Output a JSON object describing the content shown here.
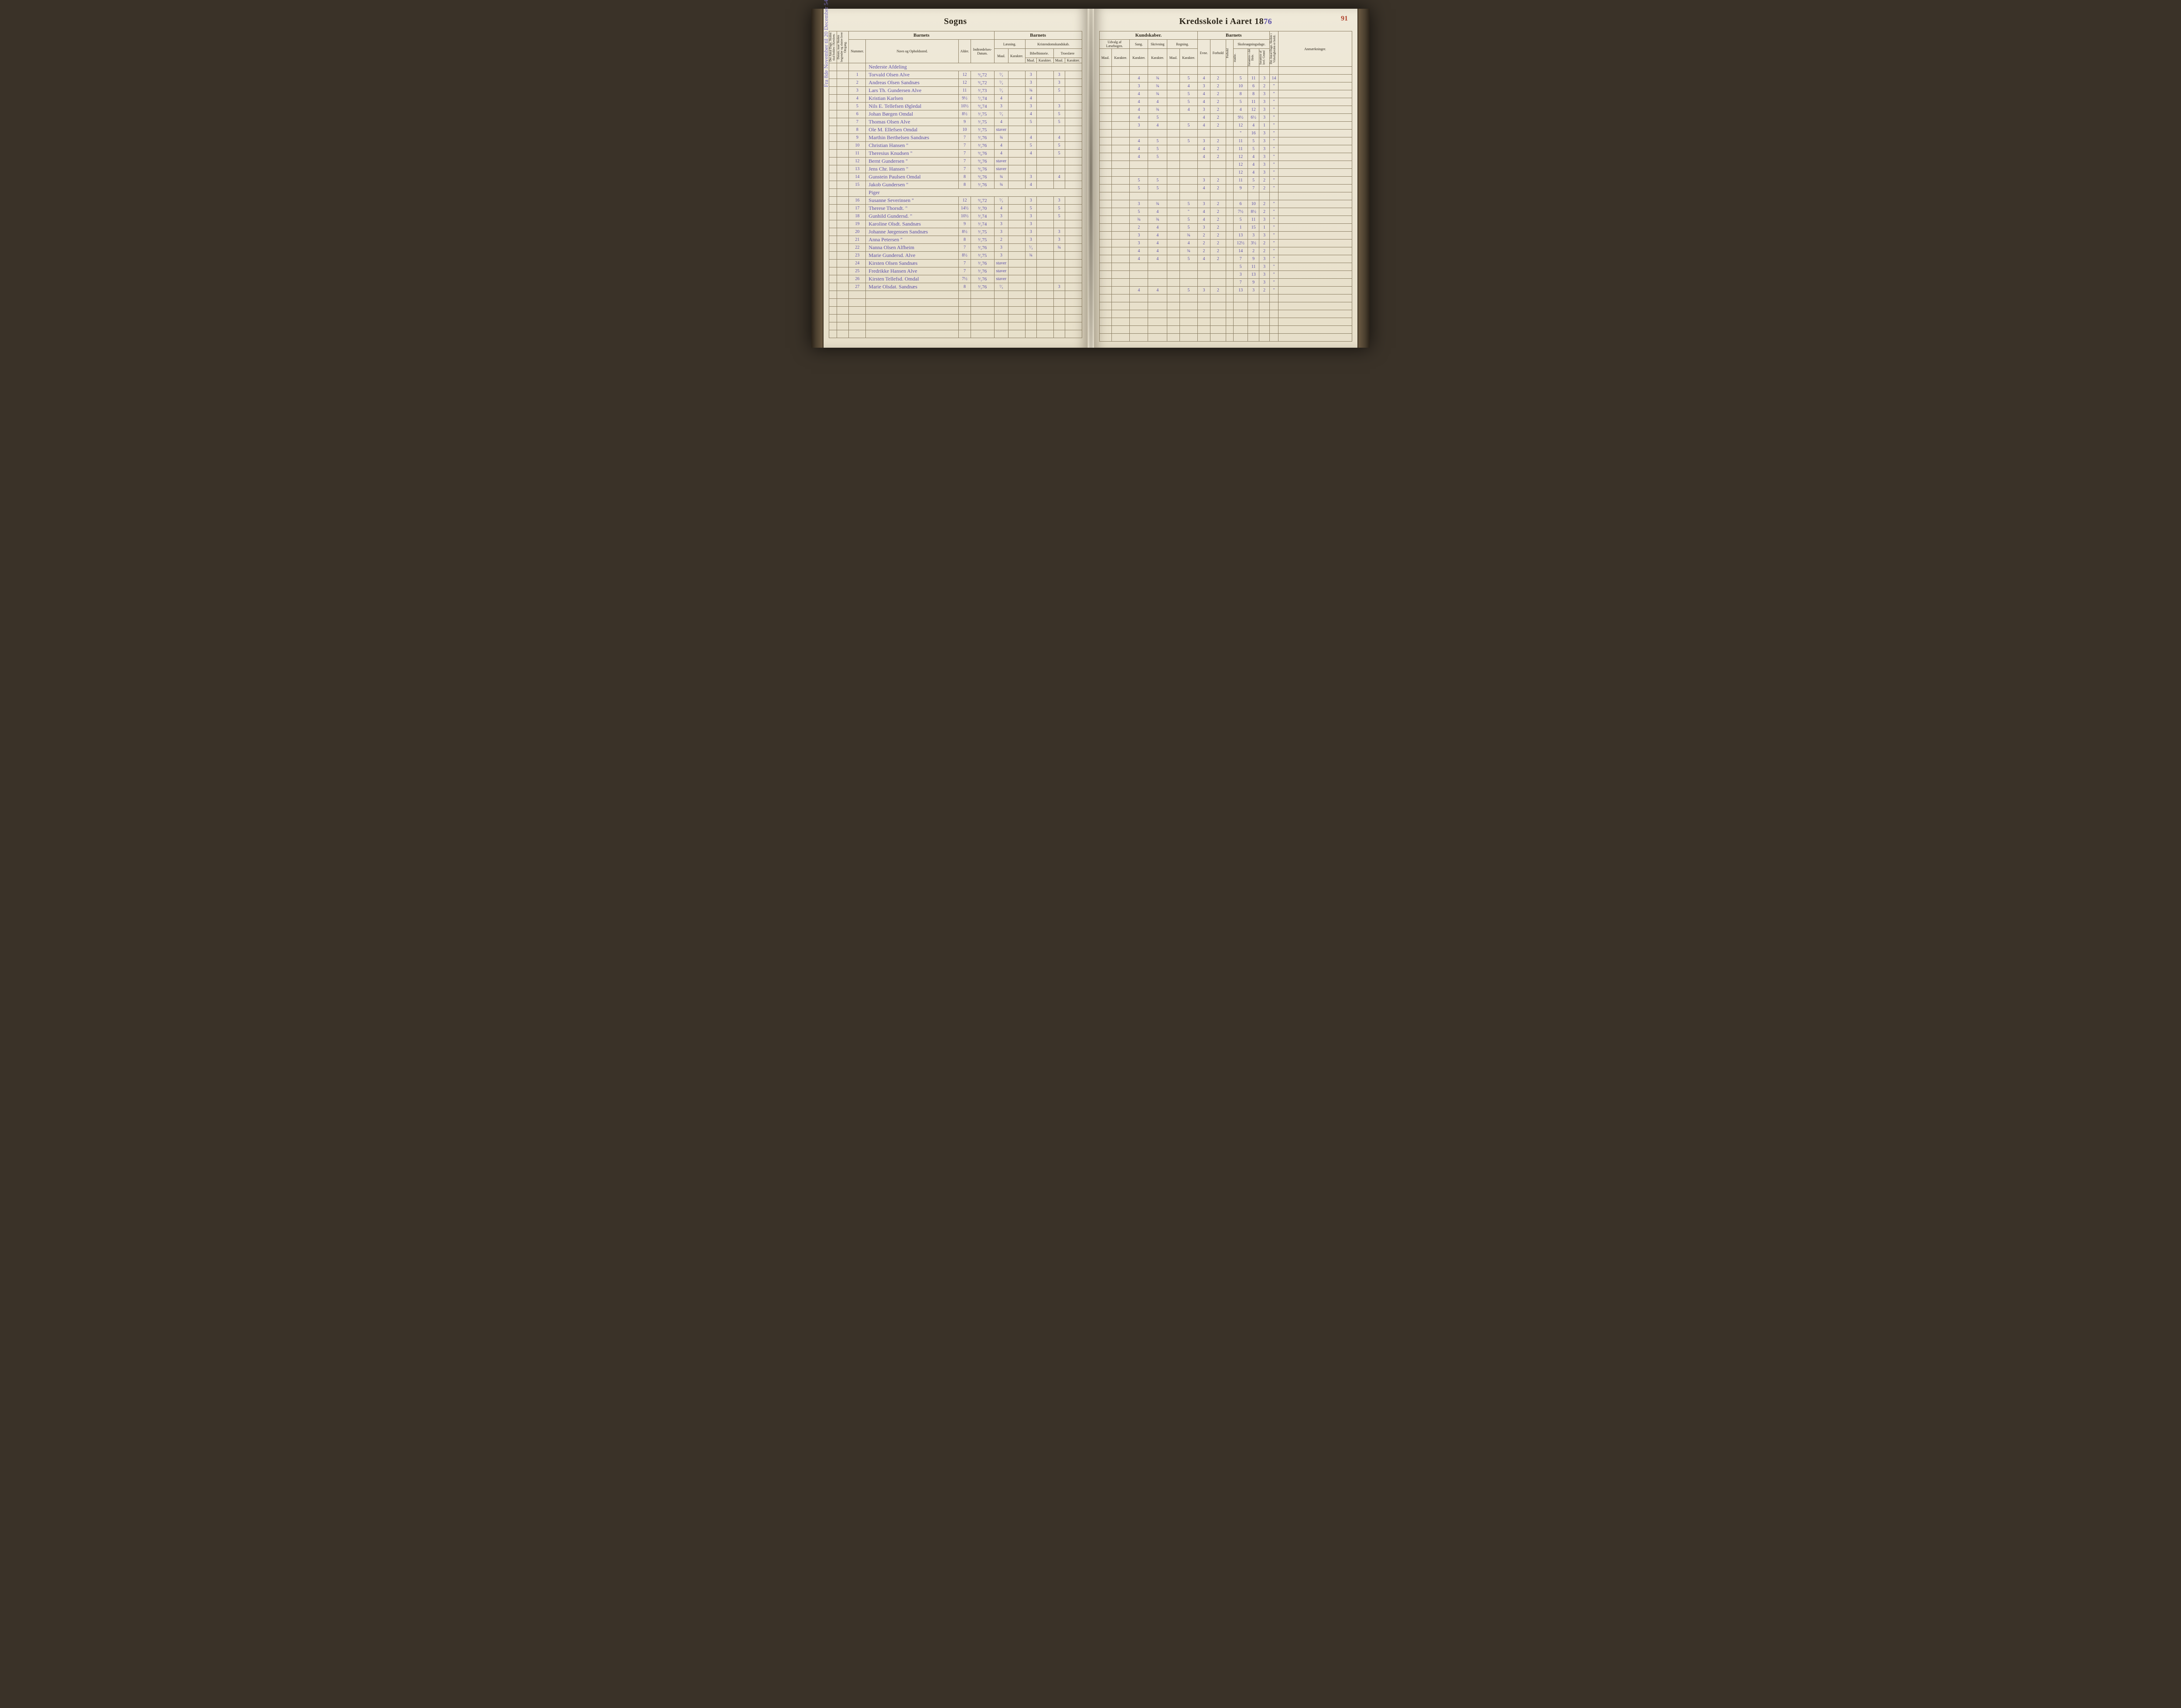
{
  "title_left": "Sogns",
  "title_right_prefix": "Kredsskole i Aaret 18",
  "year_suffix": "76",
  "page_number": "91",
  "side_margin_note": "Fra 8de November til 20 December  54 Dage",
  "left_rotated_1": "Det Antal Dage, Skolen skal holdes i Kredsen.",
  "left_rotated_2": "Datum, naar Skolen begynder og slutter hver Omgang.",
  "headers": {
    "barnets": "Barnets",
    "kundskaber": "Kundskaber.",
    "anm": "Anmærkninger.",
    "nummer": "Nummer.",
    "navn": "Navn og Opholdssted.",
    "alder": "Alder.",
    "indtr": "Indtrædelses-Datum.",
    "laesning": "Læsning.",
    "kristendom": "Kristendomskundskab.",
    "bibel": "Bibelhistorie.",
    "troes": "Troeslære",
    "maal": "Maal.",
    "karakter": "Karakter.",
    "udvalg": "Udvalg af Læsebogen.",
    "sang": "Sang.",
    "skrivning": "Skrivning",
    "regning": "Regning.",
    "evne": "Evne.",
    "forhold": "Forhold",
    "skoles": "Skolesøgningsdage.",
    "modte": "mødte.",
    "fors_hele": "forsømte i det Hele.",
    "fors_lovl": "forsømte af lovl. Grund",
    "virk": "Det Antal Dage, Skolen i Virkeligheden er holdt."
  },
  "section1": "Nederste Afdeling",
  "section2": "Piger",
  "rows": [
    {
      "n": "1",
      "name": "Torvald Olsen Alve",
      "age": "12",
      "date": "⁹⁄₆72",
      "m1": "⁷⁄₃",
      "k1": "",
      "m2": "3",
      "k2": "",
      "m3": "3",
      "u": "",
      "sa": "4",
      "sk": "¾",
      "rm": "",
      "rk": "5",
      "e": "4",
      "f": "2",
      "d1": "5",
      "d2": "11",
      "d3": "3",
      "v": "14"
    },
    {
      "n": "2",
      "name": "Andreas Olsen Sandnæs",
      "age": "12",
      "date": "⁹⁄₆72",
      "m1": "⁷⁄₃",
      "k1": "",
      "m2": "3",
      "k2": "",
      "m3": "3",
      "u": "",
      "sa": "3",
      "sk": "¾",
      "rm": "",
      "rk": "4",
      "e": "3",
      "f": "2",
      "d1": "10",
      "d2": "6",
      "d3": "2",
      "v": "\""
    },
    {
      "n": "3",
      "name": "Lars Th. Gundersen Alve",
      "age": "11",
      "date": "³⁄₁73",
      "m1": "⁷⁄₃",
      "k1": "",
      "m2": "¾",
      "k2": "",
      "m3": "5",
      "u": "",
      "sa": "4",
      "sk": "¾",
      "rm": "",
      "rk": "5",
      "e": "4",
      "f": "2",
      "d1": "8",
      "d2": "8",
      "d3": "3",
      "v": "\""
    },
    {
      "n": "4",
      "name": "Kristian Karlsen",
      "age": "9½",
      "date": "⁷⁄₁74",
      "m1": "4",
      "k1": "",
      "m2": "4",
      "k2": "",
      "m3": "",
      "u": "",
      "sa": "4",
      "sk": "4",
      "rm": "",
      "rk": "5",
      "e": "4",
      "f": "2",
      "d1": "5",
      "d2": "11",
      "d3": "3",
      "v": "\""
    },
    {
      "n": "5",
      "name": "Nils E. Tellefsen Øgledal",
      "age": "10½",
      "date": "⁹⁄₆74",
      "m1": "3",
      "k1": "",
      "m2": "3",
      "k2": "",
      "m3": "3",
      "u": "",
      "sa": "4",
      "sk": "¾",
      "rm": "",
      "rk": "4",
      "e": "3",
      "f": "2",
      "d1": "4",
      "d2": "12",
      "d3": "3",
      "v": "\""
    },
    {
      "n": "6",
      "name": "Johan Børgen Omdal",
      "age": "8½",
      "date": "³⁄₁75",
      "m1": "⁷⁄₃",
      "k1": "",
      "m2": "4",
      "k2": "",
      "m3": "5",
      "u": "",
      "sa": "4",
      "sk": "5",
      "rm": "",
      "rk": "",
      "e": "4",
      "f": "2",
      "d1": "9½",
      "d2": "6½",
      "d3": "3",
      "v": "\""
    },
    {
      "n": "7",
      "name": "Thomas Olsen Alve",
      "age": "9",
      "date": "³⁄₁75",
      "m1": "4",
      "k1": "",
      "m2": "5",
      "k2": "",
      "m3": "5",
      "u": "",
      "sa": "3",
      "sk": "4",
      "rm": "",
      "rk": "5",
      "e": "4",
      "f": "2",
      "d1": "12",
      "d2": "4",
      "d3": "1",
      "v": "\""
    },
    {
      "n": "8",
      "name": "Ole M. Ellefsen Omdal",
      "age": "10",
      "date": "³⁄₁75",
      "m1": "staver",
      "k1": "",
      "m2": "",
      "k2": "",
      "m3": "",
      "u": "",
      "sa": "",
      "sk": "",
      "rm": "",
      "rk": "",
      "e": "",
      "f": "",
      "d1": "\"",
      "d2": "16",
      "d3": "3",
      "v": "\""
    },
    {
      "n": "9",
      "name": "Marthin Berthelsen Sandnæs",
      "age": "7",
      "date": "³⁄₁76",
      "m1": "¾",
      "k1": "",
      "m2": "4",
      "k2": "",
      "m3": "4",
      "u": "",
      "sa": "4",
      "sk": "5",
      "rm": "",
      "rk": "5",
      "e": "3",
      "f": "2",
      "d1": "11",
      "d2": "5",
      "d3": "3",
      "v": "\""
    },
    {
      "n": "10",
      "name": "Christian Hansen   \"",
      "age": "7",
      "date": "³⁄₁76",
      "m1": "4",
      "k1": "",
      "m2": "5",
      "k2": "",
      "m3": "5",
      "u": "",
      "sa": "4",
      "sk": "5",
      "rm": "",
      "rk": "",
      "e": "4",
      "f": "2",
      "d1": "11",
      "d2": "5",
      "d3": "3",
      "v": "\""
    },
    {
      "n": "11",
      "name": "Theresius Knudsen   \"",
      "age": "7",
      "date": "⁹⁄₆76",
      "m1": "4",
      "k1": "",
      "m2": "4",
      "k2": "",
      "m3": "5",
      "u": "",
      "sa": "4",
      "sk": "5",
      "rm": "",
      "rk": "",
      "e": "4",
      "f": "2",
      "d1": "12",
      "d2": "4",
      "d3": "3",
      "v": "\""
    },
    {
      "n": "12",
      "name": "Bernt Gundersen   \"",
      "age": "7",
      "date": "⁹⁄₆76",
      "m1": "staver",
      "k1": "",
      "m2": "",
      "k2": "",
      "m3": "",
      "u": "",
      "sa": "",
      "sk": "",
      "rm": "",
      "rk": "",
      "e": "",
      "f": "",
      "d1": "12",
      "d2": "4",
      "d3": "3",
      "v": "\""
    },
    {
      "n": "13",
      "name": "Jens Chr. Hansen   \"",
      "age": "7",
      "date": "⁹⁄₆76",
      "m1": "staver",
      "k1": "",
      "m2": "",
      "k2": "",
      "m3": "",
      "u": "",
      "sa": "",
      "sk": "",
      "rm": "",
      "rk": "",
      "e": "",
      "f": "",
      "d1": "12",
      "d2": "4",
      "d3": "3",
      "v": "\""
    },
    {
      "n": "14",
      "name": "Gunstein Paulsen  Omdal",
      "age": "8",
      "date": "⁹⁄₆76",
      "m1": "¾",
      "k1": "",
      "m2": "3",
      "k2": "",
      "m3": "4",
      "u": "",
      "sa": "5",
      "sk": "5",
      "rm": "",
      "rk": "",
      "e": "3",
      "f": "2",
      "d1": "11",
      "d2": "5",
      "d3": "2",
      "v": "\""
    },
    {
      "n": "15",
      "name": "Jakob Gundersen   \"",
      "age": "8",
      "date": "³⁄₁76",
      "m1": "¾",
      "k1": "",
      "m2": "4",
      "k2": "",
      "m3": "",
      "u": "",
      "sa": "5",
      "sk": "5",
      "rm": "",
      "rk": "",
      "e": "4",
      "f": "2",
      "d1": "9",
      "d2": "7",
      "d3": "2",
      "v": "\""
    },
    {
      "n": "16",
      "name": "Susanne Severinsen  \"",
      "age": "12",
      "date": "⁹⁄₆72",
      "m1": "⁷⁄₃",
      "k1": "",
      "m2": "3",
      "k2": "",
      "m3": "3",
      "u": "",
      "sa": "3",
      "sk": "¾",
      "rm": "",
      "rk": "5",
      "e": "3",
      "f": "2",
      "d1": "6",
      "d2": "10",
      "d3": "2",
      "v": "\""
    },
    {
      "n": "17",
      "name": "Therese Thorsdt.   \"",
      "age": "14½",
      "date": "³⁄₁70",
      "m1": "4",
      "k1": "",
      "m2": "5",
      "k2": "",
      "m3": "5",
      "u": "",
      "sa": "5",
      "sk": "4",
      "rm": "",
      "rk": "\"",
      "e": "4",
      "f": "2",
      "d1": "7½",
      "d2": "8½",
      "d3": "2",
      "v": "\""
    },
    {
      "n": "18",
      "name": "Gunhild Gundersd.  \"",
      "age": "10½",
      "date": "³⁄₁74",
      "m1": "3",
      "k1": "",
      "m2": "3",
      "k2": "",
      "m3": "5",
      "u": "",
      "sa": "¾",
      "sk": "¾",
      "rm": "",
      "rk": "5",
      "e": "4",
      "f": "2",
      "d1": "5",
      "d2": "11",
      "d3": "3",
      "v": "\""
    },
    {
      "n": "19",
      "name": "Karoline Olsdt. Sandnæs",
      "age": "9",
      "date": "³⁄₁74",
      "m1": "3",
      "k1": "",
      "m2": "3",
      "k2": "",
      "m3": "",
      "u": "",
      "sa": "2",
      "sk": "4",
      "rm": "",
      "rk": "5",
      "e": "3",
      "f": "2",
      "d1": "1",
      "d2": "15",
      "d3": "1",
      "v": "\""
    },
    {
      "n": "20",
      "name": "Johanne Jørgensen Sandnæs",
      "age": "8½",
      "date": "³⁄₁75",
      "m1": "3",
      "k1": "",
      "m2": "3",
      "k2": "",
      "m3": "3",
      "u": "",
      "sa": "3",
      "sk": "4",
      "rm": "",
      "rk": "¾",
      "e": "2",
      "f": "2",
      "d1": "13",
      "d2": "3",
      "d3": "3",
      "v": "\""
    },
    {
      "n": "21",
      "name": "Anna Petersen   \"",
      "age": "8",
      "date": "³⁄₁75",
      "m1": "2",
      "k1": "",
      "m2": "3",
      "k2": "",
      "m3": "3",
      "u": "",
      "sa": "3",
      "sk": "4",
      "rm": "",
      "rk": "4",
      "e": "2",
      "f": "2",
      "d1": "12½",
      "d2": "3½",
      "d3": "2",
      "v": "\""
    },
    {
      "n": "22",
      "name": "Nanna Olsen Alfheim",
      "age": "7",
      "date": "³⁄₁76",
      "m1": "3",
      "k1": "",
      "m2": "⁷⁄₃",
      "k2": "",
      "m3": "¾",
      "u": "",
      "sa": "4",
      "sk": "4",
      "rm": "",
      "rk": "¾",
      "e": "2",
      "f": "2",
      "d1": "14",
      "d2": "2",
      "d3": "2",
      "v": "\""
    },
    {
      "n": "23",
      "name": "Marie Gundersd. Alve",
      "age": "8½",
      "date": "³⁄₁75",
      "m1": "3",
      "k1": "",
      "m2": "¾",
      "k2": "",
      "m3": "",
      "u": "",
      "sa": "4",
      "sk": "4",
      "rm": "",
      "rk": "5",
      "e": "4",
      "f": "2",
      "d1": "7",
      "d2": "9",
      "d3": "3",
      "v": "\""
    },
    {
      "n": "24",
      "name": "Kirsten Olsen Sandnæs",
      "age": "7",
      "date": "³⁄₁76",
      "m1": "staver",
      "k1": "",
      "m2": "",
      "k2": "",
      "m3": "",
      "u": "",
      "sa": "",
      "sk": "",
      "rm": "",
      "rk": "",
      "e": "",
      "f": "",
      "d1": "5",
      "d2": "11",
      "d3": "3",
      "v": "\""
    },
    {
      "n": "25",
      "name": "Fredrikke Hansen Alve",
      "age": "7",
      "date": "³⁄₁76",
      "m1": "staver",
      "k1": "",
      "m2": "",
      "k2": "",
      "m3": "",
      "u": "",
      "sa": "",
      "sk": "",
      "rm": "",
      "rk": "",
      "e": "",
      "f": "",
      "d1": "3",
      "d2": "13",
      "d3": "3",
      "v": "\""
    },
    {
      "n": "26",
      "name": "Kirsten Tellefsd. Omdal",
      "age": "7½",
      "date": "³⁄₁76",
      "m1": "staver",
      "k1": "",
      "m2": "",
      "k2": "",
      "m3": "",
      "u": "",
      "sa": "",
      "sk": "",
      "rm": "",
      "rk": "",
      "e": "",
      "f": "",
      "d1": "7",
      "d2": "9",
      "d3": "3",
      "v": "\""
    },
    {
      "n": "27",
      "name": "Marie Olsdat. Sandnæs",
      "age": "8",
      "date": "³⁄₁76",
      "m1": "⁷⁄₃",
      "k1": "",
      "m2": "",
      "k2": "",
      "m3": "3",
      "u": "",
      "sa": "4",
      "sk": "4",
      "rm": "",
      "rk": "5",
      "e": "3",
      "f": "2",
      "d1": "13",
      "d2": "3",
      "d3": "2",
      "v": "\""
    }
  ]
}
